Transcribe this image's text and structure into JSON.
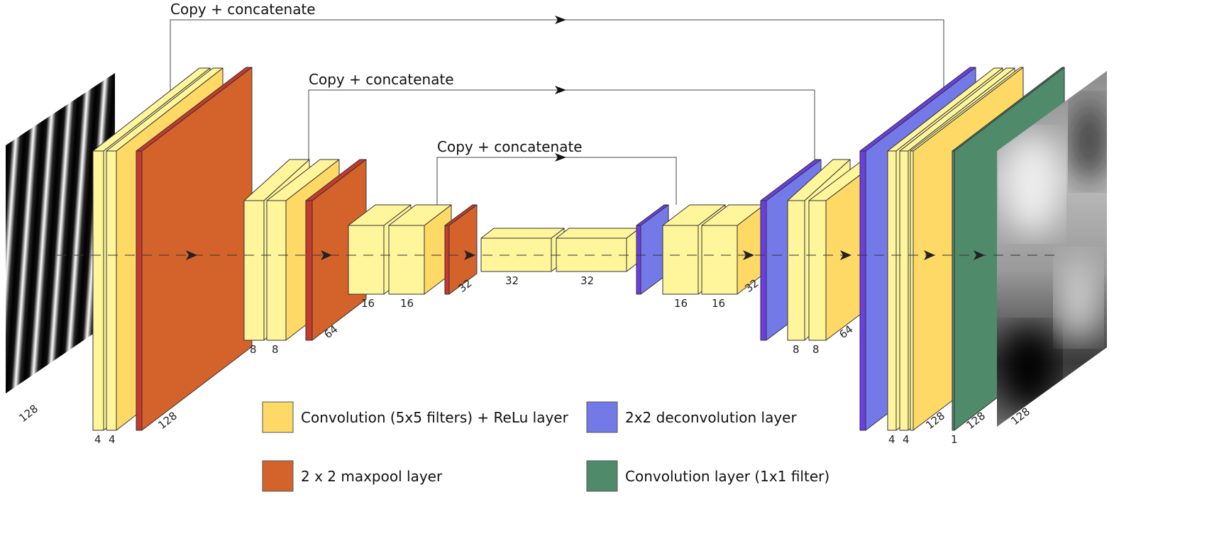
{
  "colors": {
    "conv_light": "#fff59b",
    "conv_dark": "#fed966",
    "maxpool": "#d4632b",
    "maxpool_front": "#c7392c",
    "deconv": "#7479e8",
    "deconv_front": "#6b3ee4",
    "conv1x1": "#4f8a6b",
    "edge": "#333333"
  },
  "skip_connections": [
    {
      "label": "Copy + concatenate"
    },
    {
      "label": "Copy + concatenate"
    },
    {
      "label": "Copy + concatenate"
    }
  ],
  "dimension_labels": {
    "input": "128",
    "enc1": [
      "4",
      "4",
      "128"
    ],
    "enc2": [
      "8",
      "8",
      "64"
    ],
    "enc3": [
      "16",
      "16",
      "32"
    ],
    "bottleneck": [
      "32",
      "32"
    ],
    "dec3": [
      "16",
      "16",
      "32"
    ],
    "dec2": [
      "8",
      "8",
      "64"
    ],
    "dec1": [
      "4",
      "4",
      "128"
    ],
    "final": [
      "1",
      "128"
    ],
    "output": "128"
  },
  "legend": [
    {
      "label": "Convolution (5x5 filters) + ReLu layer",
      "color": "#fed966"
    },
    {
      "label": "2x2 deconvolution layer",
      "color": "#7479e8"
    },
    {
      "label": "2 x 2 maxpool layer",
      "color": "#d4632b"
    },
    {
      "label": "Convolution layer (1x1 filter)",
      "color": "#4f8a6b"
    }
  ]
}
